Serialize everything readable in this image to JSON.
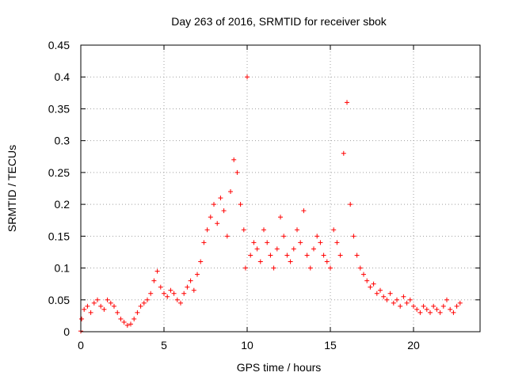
{
  "chart_data": {
    "type": "scatter",
    "title": "Day 263 of 2016, SRMTID for receiver sbok",
    "xlabel": "GPS time / hours",
    "ylabel": "SRMTID / TECUs",
    "xlim": [
      0,
      24
    ],
    "ylim": [
      0,
      0.45
    ],
    "x_ticks": [
      "0",
      "5",
      "10",
      "15",
      "20"
    ],
    "y_ticks": [
      "0",
      "0.05",
      "0.1",
      "0.15",
      "0.2",
      "0.25",
      "0.3",
      "0.35",
      "0.4",
      "0.45"
    ],
    "grid": true,
    "marker": "+",
    "colors": {
      "points": "#ff0000",
      "grid": "#a0a0a0",
      "axes": "#000000"
    },
    "series": [
      {
        "x": [
          0.0,
          0.05,
          0.2,
          0.4,
          0.6,
          0.8,
          1.0,
          1.2,
          1.4,
          1.6,
          1.8,
          2.0,
          2.2,
          2.4,
          2.6,
          2.8,
          3.0,
          3.2,
          3.4,
          3.6,
          3.8,
          4.0,
          4.2,
          4.4,
          4.6,
          4.8,
          5.0,
          5.2,
          5.4,
          5.6,
          5.8,
          6.0,
          6.2,
          6.4,
          6.6,
          6.8,
          7.0,
          7.2,
          7.4,
          7.6,
          7.8,
          8.0,
          8.2,
          8.4,
          8.6,
          8.8,
          9.0,
          9.2,
          9.4,
          9.6,
          9.8,
          9.9,
          10.0,
          10.2,
          10.4,
          10.6,
          10.8,
          11.0,
          11.2,
          11.4,
          11.6,
          11.8,
          12.0,
          12.2,
          12.4,
          12.6,
          12.8,
          13.0,
          13.2,
          13.4,
          13.6,
          13.8,
          14.0,
          14.2,
          14.4,
          14.6,
          14.8,
          15.0,
          15.2,
          15.4,
          15.6,
          15.8,
          16.0,
          16.2,
          16.4,
          16.6,
          16.8,
          17.0,
          17.2,
          17.4,
          17.6,
          17.8,
          18.0,
          18.2,
          18.4,
          18.6,
          18.8,
          19.0,
          19.2,
          19.4,
          19.6,
          19.8,
          20.0,
          20.2,
          20.4,
          20.6,
          20.8,
          21.0,
          21.2,
          21.4,
          21.6,
          21.8,
          22.0,
          22.2,
          22.4,
          22.6,
          22.8
        ],
        "y": [
          0.001,
          0.02,
          0.035,
          0.04,
          0.03,
          0.045,
          0.05,
          0.04,
          0.035,
          0.05,
          0.045,
          0.04,
          0.03,
          0.02,
          0.015,
          0.01,
          0.012,
          0.02,
          0.03,
          0.04,
          0.045,
          0.05,
          0.06,
          0.08,
          0.095,
          0.07,
          0.06,
          0.055,
          0.065,
          0.06,
          0.05,
          0.045,
          0.06,
          0.07,
          0.08,
          0.065,
          0.09,
          0.11,
          0.14,
          0.16,
          0.18,
          0.2,
          0.17,
          0.21,
          0.19,
          0.15,
          0.22,
          0.27,
          0.25,
          0.2,
          0.16,
          0.1,
          0.4,
          0.12,
          0.14,
          0.13,
          0.11,
          0.16,
          0.14,
          0.12,
          0.1,
          0.13,
          0.18,
          0.15,
          0.12,
          0.11,
          0.13,
          0.16,
          0.14,
          0.19,
          0.12,
          0.1,
          0.13,
          0.15,
          0.14,
          0.12,
          0.11,
          0.1,
          0.16,
          0.14,
          0.12,
          0.28,
          0.36,
          0.2,
          0.15,
          0.12,
          0.1,
          0.09,
          0.08,
          0.07,
          0.075,
          0.06,
          0.065,
          0.055,
          0.05,
          0.06,
          0.045,
          0.05,
          0.04,
          0.055,
          0.045,
          0.05,
          0.04,
          0.035,
          0.03,
          0.04,
          0.035,
          0.03,
          0.04,
          0.035,
          0.03,
          0.04,
          0.05,
          0.035,
          0.03,
          0.04,
          0.045
        ]
      }
    ]
  }
}
